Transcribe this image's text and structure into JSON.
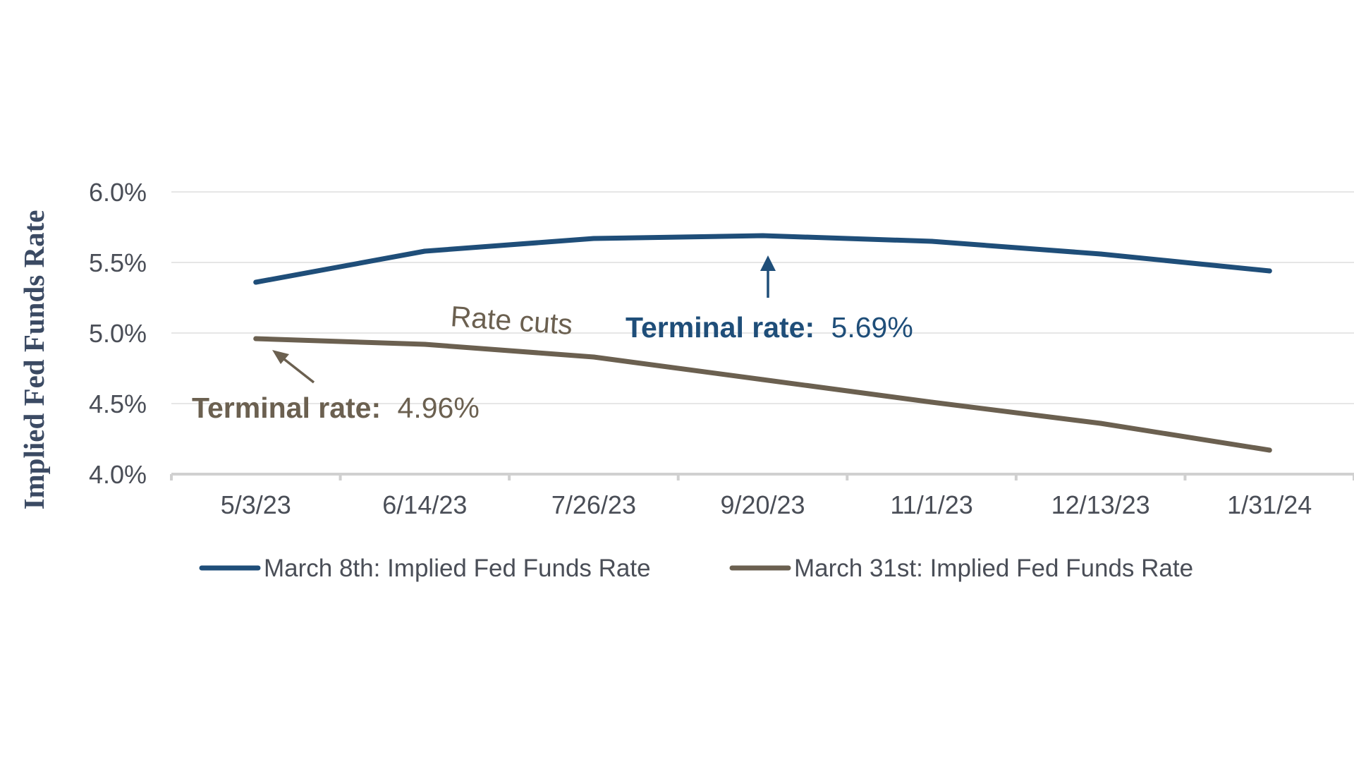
{
  "chart_data": {
    "type": "line",
    "ylabel": "Implied Fed Funds Rate",
    "categories": [
      "5/3/23",
      "6/14/23",
      "7/26/23",
      "9/20/23",
      "11/1/23",
      "12/13/23",
      "1/31/24"
    ],
    "ylim": [
      4.0,
      6.0
    ],
    "yticks": [
      4.0,
      4.5,
      5.0,
      5.5,
      6.0
    ],
    "ytick_labels": [
      "4.0%",
      "4.5%",
      "5.0%",
      "5.5%",
      "6.0%"
    ],
    "grid": true,
    "legend_position": "bottom",
    "series": [
      {
        "name": "March 8th: Implied Fed Funds Rate",
        "color": "#1f4e79",
        "values": [
          5.36,
          5.58,
          5.67,
          5.69,
          5.65,
          5.56,
          5.44
        ]
      },
      {
        "name": "March 31st: Implied Fed Funds Rate",
        "color": "#6b6050",
        "values": [
          4.96,
          4.92,
          4.83,
          4.67,
          4.51,
          4.36,
          4.17
        ]
      }
    ],
    "annotations": {
      "terminal_blue_label": "Terminal rate:",
      "terminal_blue_value": "5.69%",
      "terminal_brown_label": "Terminal rate:",
      "terminal_brown_value": "4.96%",
      "rate_cuts": "Rate cuts"
    }
  }
}
